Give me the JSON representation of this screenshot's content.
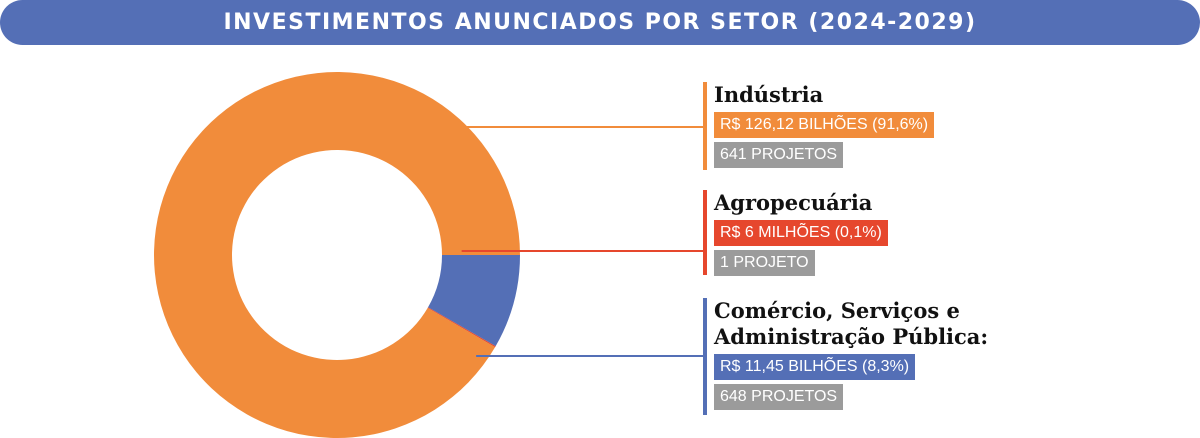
{
  "chart_data": {
    "type": "pie",
    "donut": true,
    "title": "INVESTIMENTOS ANUNCIADOS POR SETOR (2024-2029)",
    "categories": [
      "Indústria",
      "Agropecuária",
      "Comércio, Serviços e Administração Pública:"
    ],
    "values": [
      91.6,
      0.1,
      8.3
    ],
    "value_labels": [
      "R$ 126,12 BILHÕES (91,6%)",
      "R$ 6 MILHÕES (0,1%)",
      "R$ 11,45 BILHÕES (8,3%)"
    ],
    "project_labels": [
      "641 PROJETOS",
      "1 PROJETO",
      "648 PROJETOS"
    ],
    "colors": [
      "#f18c3b",
      "#e6472d",
      "#546fb6"
    ]
  }
}
